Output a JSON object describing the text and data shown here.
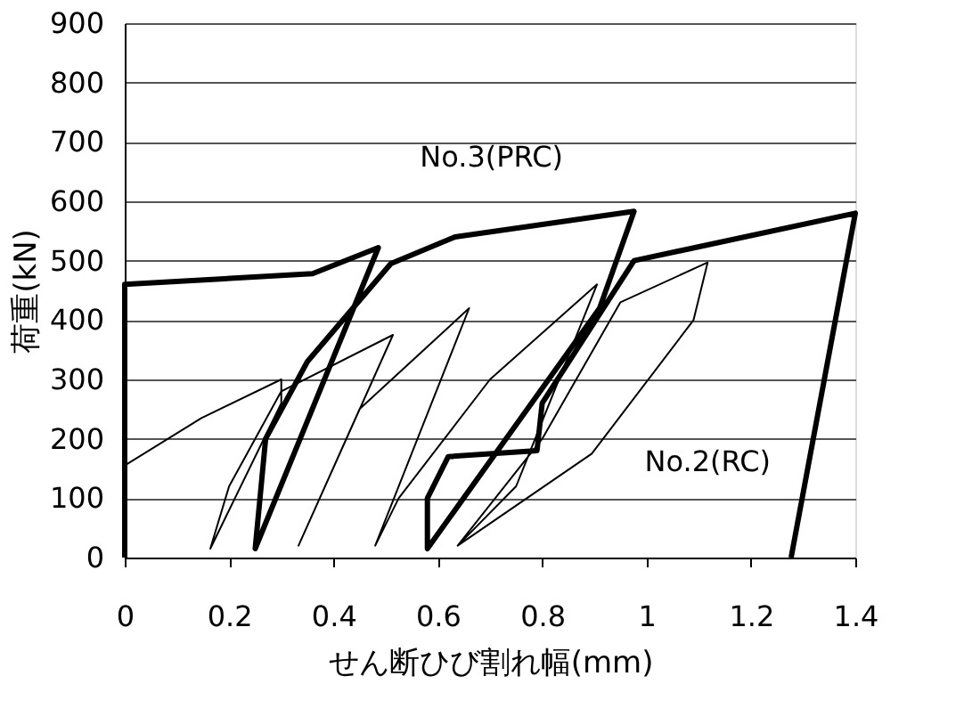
{
  "chart_data": {
    "type": "line",
    "xlabel": "せん断ひび割れ幅(mm)",
    "ylabel": "荷重(kN)",
    "xlim": [
      0,
      1.4
    ],
    "xticks": [
      0,
      0.2,
      0.4,
      0.6,
      0.8,
      1,
      1.2,
      1.4
    ],
    "ylim": [
      0,
      900
    ],
    "yticks": [
      0,
      100,
      200,
      300,
      400,
      500,
      600,
      700,
      800,
      900
    ],
    "grid": "y",
    "marker": "none",
    "line_style": "solid",
    "series": [
      {
        "name": "No.3(PRC)",
        "color": "#000000",
        "x": [
          0,
          0,
          0.36,
          0.486,
          0.25,
          0.27,
          0.35,
          0.51,
          0.633,
          0.976,
          0.91,
          0.58,
          0.58,
          0.62,
          0.79,
          0.8,
          0.976,
          1.4,
          1.277
        ],
        "values": [
          0,
          460,
          478,
          522,
          15,
          200,
          330,
          495,
          540,
          583,
          420,
          15,
          100,
          170,
          180,
          260,
          500,
          580,
          0
        ]
      },
      {
        "name": "No.2(RC)",
        "color": "#000000",
        "x": [
          0,
          0.147,
          0.3,
          0.3,
          0.164,
          0.2,
          0.3,
          0.514,
          0.333,
          0.45,
          0.66,
          0.48,
          0.525,
          0.7,
          0.905,
          0.75,
          0.638,
          0.8,
          0.95,
          1.117,
          1.09,
          0.895,
          0.638
        ],
        "values": [
          155,
          235,
          300,
          260,
          15,
          120,
          280,
          375,
          20,
          250,
          420,
          20,
          100,
          300,
          460,
          120,
          20,
          200,
          430,
          497,
          400,
          175,
          20
        ]
      }
    ]
  }
}
